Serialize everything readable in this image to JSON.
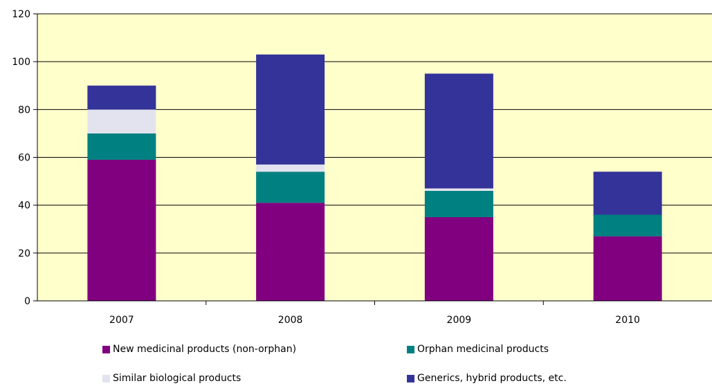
{
  "chart_data": {
    "type": "bar",
    "stacked": true,
    "categories": [
      "2007",
      "2008",
      "2009",
      "2010"
    ],
    "ylim": [
      0,
      120
    ],
    "yticks": [
      "0",
      "20",
      "40",
      "60",
      "80",
      "100",
      "120"
    ],
    "grid": true,
    "legend_position": "bottom",
    "title": "",
    "xlabel": "",
    "ylabel": "",
    "series": [
      {
        "name": "New medicinal products (non-orphan)",
        "color": "#800080",
        "values": [
          59,
          41,
          35,
          27
        ]
      },
      {
        "name": "Orphan medicinal products",
        "color": "#008080",
        "values": [
          11,
          13,
          11,
          9
        ]
      },
      {
        "name": "Similar biological products",
        "color": "#e3e3f0",
        "values": [
          10,
          3,
          1,
          0
        ]
      },
      {
        "name": "Generics, hybrid products, etc.",
        "color": "#333399",
        "values": [
          10,
          46,
          48,
          18
        ]
      }
    ],
    "background_color": "#ffffcc",
    "gridline_color": "#000000"
  }
}
